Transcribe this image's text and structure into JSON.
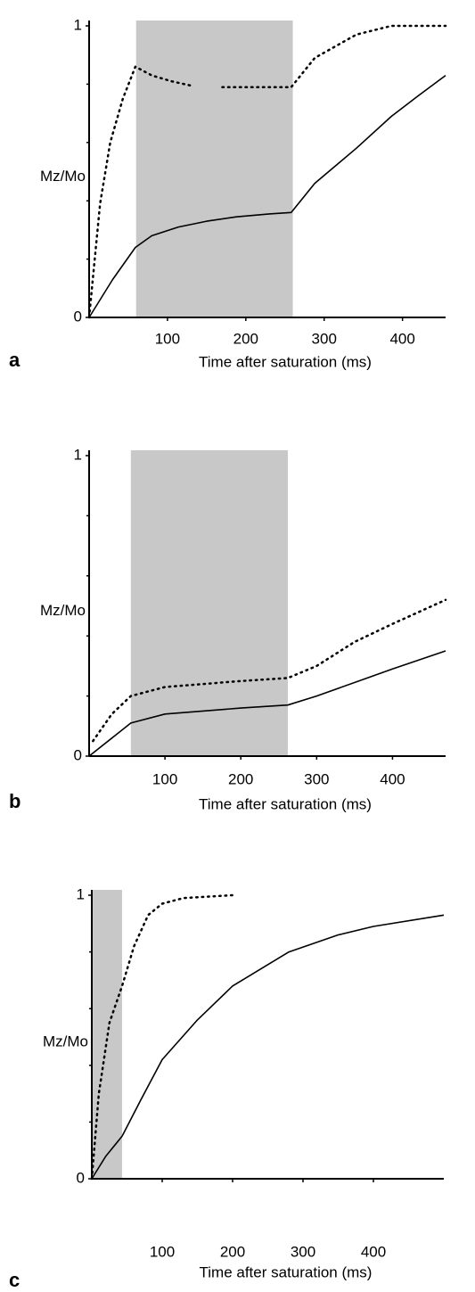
{
  "chart_data": [
    {
      "type": "line",
      "label": "a",
      "xlabel": "Time after saturation (ms)",
      "ylabel": "Mz/Mo",
      "xlim": [
        0,
        455
      ],
      "ylim": [
        0,
        1
      ],
      "xticks": [
        100,
        200,
        300,
        400
      ],
      "yticks": [
        0,
        1
      ],
      "yminorticks": [
        0.2,
        0.4,
        0.6,
        0.8
      ],
      "highlight": [
        60,
        260
      ],
      "highlight_color": "#c8c8c8",
      "series": [
        {
          "style": "solid",
          "color": "#000000",
          "x": [
            0,
            30,
            59,
            80,
            114,
            150,
            188,
            230,
            258,
            288,
            341,
            386,
            420,
            455
          ],
          "values": [
            0,
            0.13,
            0.24,
            0.28,
            0.31,
            0.33,
            0.345,
            0.355,
            0.36,
            0.46,
            0.58,
            0.69,
            0.76,
            0.83
          ]
        },
        {
          "style": "dotted",
          "color": "#000000",
          "x": [
            0,
            14,
            27,
            43,
            59,
            80,
            105,
            130,
            150,
            170,
            220,
            258,
            288,
            341,
            386,
            455
          ],
          "values": [
            0,
            0.39,
            0.6,
            0.75,
            0.86,
            0.83,
            0.81,
            0.795,
            null,
            0.79,
            0.79,
            0.79,
            0.89,
            0.97,
            1,
            1
          ]
        }
      ]
    },
    {
      "type": "line",
      "label": "b",
      "xlabel": "Time after saturation (ms)",
      "ylabel": "Mz/Mo",
      "xlim": [
        0,
        470
      ],
      "ylim": [
        0,
        1
      ],
      "xticks": [
        100,
        200,
        300,
        400
      ],
      "yticks": [
        0,
        1
      ],
      "yminorticks": [
        0.2,
        0.4,
        0.6,
        0.8
      ],
      "highlight": [
        55,
        262
      ],
      "highlight_color": "#c8c8c8",
      "series": [
        {
          "style": "solid",
          "color": "#000000",
          "x": [
            0,
            55,
            100,
            200,
            262,
            300,
            400,
            470
          ],
          "values": [
            0,
            0.11,
            0.14,
            0.16,
            0.17,
            0.2,
            0.29,
            0.35
          ]
        },
        {
          "style": "dotted",
          "color": "#000000",
          "x": [
            5,
            30,
            55,
            100,
            200,
            262,
            300,
            350,
            400,
            470
          ],
          "values": [
            0.05,
            0.14,
            0.2,
            0.23,
            0.25,
            0.26,
            0.3,
            0.38,
            0.44,
            0.52
          ]
        }
      ]
    },
    {
      "type": "line",
      "label": "c",
      "xlabel": "Time after saturation (ms)",
      "ylabel": "Mz/Mo",
      "xlim": [
        0,
        500
      ],
      "ylim": [
        0,
        1
      ],
      "xticks": [
        100,
        200,
        300,
        400
      ],
      "yticks": [
        0,
        1
      ],
      "yminorticks": [
        0.2,
        0.4,
        0.6,
        0.8
      ],
      "highlight": [
        0,
        43
      ],
      "highlight_color": "#c8c8c8",
      "series": [
        {
          "style": "solid",
          "color": "#000000",
          "x": [
            0,
            20,
            43,
            70,
            100,
            150,
            200,
            280,
            350,
            400,
            500
          ],
          "values": [
            0,
            0.08,
            0.15,
            0.28,
            0.42,
            0.56,
            0.68,
            0.8,
            0.86,
            0.89,
            0.93
          ]
        },
        {
          "style": "dotted",
          "color": "#000000",
          "x": [
            0,
            10,
            25,
            43,
            60,
            80,
            100,
            130,
            200
          ],
          "values": [
            0,
            0.3,
            0.55,
            0.68,
            0.82,
            0.93,
            0.97,
            0.99,
            1
          ]
        }
      ]
    }
  ]
}
